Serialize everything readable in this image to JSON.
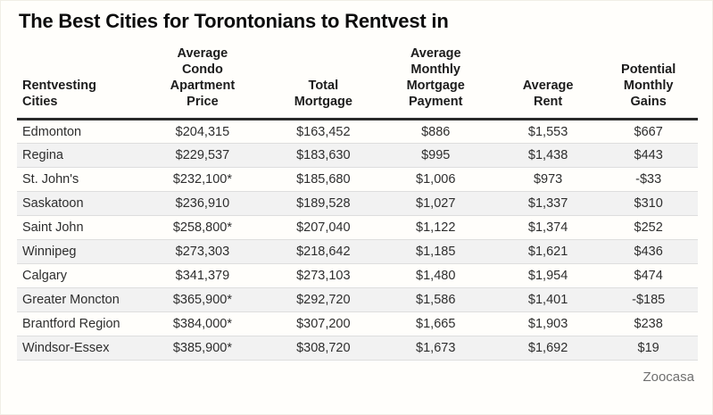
{
  "page": {
    "source_label": "Zoocasa"
  },
  "colors": {
    "background": "#fffefb",
    "title_text": "#0d0d0d",
    "header_rule": "#2a2a2a",
    "row_alt_bg": "#f2f2f2",
    "row_divider": "#dedede",
    "cell_text": "#2e2e2e",
    "source_text": "#6f6f6f"
  },
  "chart_data": {
    "type": "table",
    "title": "The Best Cities for Torontonians to Rentvest in",
    "columns": [
      "Rentvesting\nCities",
      "Average\nCondo\nApartment\nPrice",
      "Total\nMortgage",
      "Average\nMonthly\nMortgage\nPayment",
      "Average\nRent",
      "Potential\nMonthly\nGains"
    ],
    "rows": [
      [
        "Edmonton",
        "$204,315",
        "$163,452",
        "$886",
        "$1,553",
        "$667"
      ],
      [
        "Regina",
        "$229,537",
        "$183,630",
        "$995",
        "$1,438",
        "$443"
      ],
      [
        "St. John's",
        "$232,100*",
        "$185,680",
        "$1,006",
        "$973",
        "-$33"
      ],
      [
        "Saskatoon",
        "$236,910",
        "$189,528",
        "$1,027",
        "$1,337",
        "$310"
      ],
      [
        "Saint John",
        "$258,800*",
        "$207,040",
        "$1,122",
        "$1,374",
        "$252"
      ],
      [
        "Winnipeg",
        "$273,303",
        "$218,642",
        "$1,185",
        "$1,621",
        "$436"
      ],
      [
        "Calgary",
        "$341,379",
        "$273,103",
        "$1,480",
        "$1,954",
        "$474"
      ],
      [
        "Greater Moncton",
        "$365,900*",
        "$292,720",
        "$1,586",
        "$1,401",
        "-$185"
      ],
      [
        "Brantford Region",
        "$384,000*",
        "$307,200",
        "$1,665",
        "$1,903",
        "$238"
      ],
      [
        "Windsor-Essex",
        "$385,900*",
        "$308,720",
        "$1,673",
        "$1,692",
        "$19"
      ]
    ],
    "layout": {
      "first_column_align": "left",
      "other_columns_align": "center",
      "alternating_row_shading": true,
      "grid": "horizontal-only"
    }
  }
}
